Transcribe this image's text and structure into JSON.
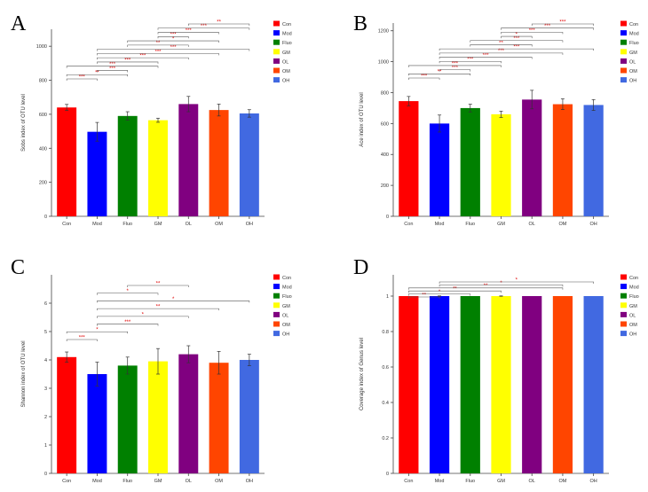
{
  "figure": {
    "colors": [
      "#ff0000",
      "#0000ff",
      "#008000",
      "#ffff00",
      "#800080",
      "#ff4500",
      "#4169e1"
    ],
    "legend_entries": [
      "Con",
      "Mod",
      "Fluo",
      "GM",
      "OL",
      "OM",
      "OH"
    ]
  },
  "chart_data": [
    {
      "panel": "A",
      "type": "bar",
      "title": "",
      "xlabel": "",
      "ylabel": "Sobs index of OTU level",
      "categories": [
        "Con",
        "Mod",
        "Fluo",
        "GM",
        "OL",
        "OM",
        "OH"
      ],
      "values": [
        640,
        497,
        590,
        565,
        660,
        625,
        605
      ],
      "errors": [
        18,
        55,
        25,
        12,
        45,
        35,
        22
      ],
      "ylim": [
        0,
        1100
      ],
      "yticks": [
        0,
        200,
        400,
        600,
        800,
        1000
      ],
      "legend_position": "top-right",
      "comparisons": [
        {
          "a": 0,
          "b": 1,
          "label": "***"
        },
        {
          "a": 0,
          "b": 2,
          "label": "**"
        },
        {
          "a": 1,
          "b": 2,
          "label": "***"
        },
        {
          "a": 0,
          "b": 3,
          "label": "***"
        },
        {
          "a": 1,
          "b": 3,
          "label": "***"
        },
        {
          "a": 1,
          "b": 4,
          "label": "***"
        },
        {
          "a": 1,
          "b": 5,
          "label": "***"
        },
        {
          "a": 1,
          "b": 6,
          "label": "***"
        },
        {
          "a": 2,
          "b": 4,
          "label": "**"
        },
        {
          "a": 2,
          "b": 5,
          "label": "*"
        },
        {
          "a": 3,
          "b": 4,
          "label": "***"
        },
        {
          "a": 3,
          "b": 5,
          "label": "***"
        },
        {
          "a": 3,
          "b": 6,
          "label": "***"
        },
        {
          "a": 4,
          "b": 6,
          "label": "**"
        }
      ]
    },
    {
      "panel": "B",
      "type": "bar",
      "title": "",
      "xlabel": "",
      "ylabel": "Ace index of OTU level",
      "categories": [
        "Con",
        "Mod",
        "Fluo",
        "GM",
        "OL",
        "OM",
        "OH"
      ],
      "values": [
        745,
        600,
        700,
        660,
        755,
        725,
        720
      ],
      "errors": [
        30,
        55,
        25,
        20,
        60,
        35,
        35
      ],
      "ylim": [
        0,
        1250
      ],
      "yticks": [
        0,
        200,
        400,
        600,
        800,
        1000,
        1200
      ],
      "legend_position": "top-right",
      "comparisons": [
        {
          "a": 0,
          "b": 1,
          "label": "***"
        },
        {
          "a": 0,
          "b": 2,
          "label": "**"
        },
        {
          "a": 1,
          "b": 2,
          "label": "***"
        },
        {
          "a": 0,
          "b": 3,
          "label": "***"
        },
        {
          "a": 1,
          "b": 3,
          "label": "***"
        },
        {
          "a": 1,
          "b": 4,
          "label": "***"
        },
        {
          "a": 1,
          "b": 5,
          "label": "***"
        },
        {
          "a": 1,
          "b": 6,
          "label": "***"
        },
        {
          "a": 2,
          "b": 4,
          "label": "**"
        },
        {
          "a": 2,
          "b": 5,
          "label": "***"
        },
        {
          "a": 3,
          "b": 4,
          "label": "*"
        },
        {
          "a": 3,
          "b": 5,
          "label": "***"
        },
        {
          "a": 3,
          "b": 6,
          "label": "***"
        },
        {
          "a": 4,
          "b": 6,
          "label": "***"
        }
      ]
    },
    {
      "panel": "C",
      "type": "bar",
      "title": "",
      "xlabel": "",
      "ylabel": "Shannon index of OTU level",
      "categories": [
        "Con",
        "Mod",
        "Fluo",
        "GM",
        "OL",
        "OM",
        "OH"
      ],
      "values": [
        4.1,
        3.5,
        3.8,
        3.95,
        4.2,
        3.9,
        4.0
      ],
      "errors": [
        0.18,
        0.42,
        0.3,
        0.45,
        0.3,
        0.4,
        0.2
      ],
      "ylim": [
        0,
        7
      ],
      "yticks": [
        0,
        1,
        2,
        3,
        4,
        5,
        6
      ],
      "legend_position": "top-right",
      "comparisons": [
        {
          "a": 0,
          "b": 1,
          "label": "***"
        },
        {
          "a": 0,
          "b": 2,
          "label": "*"
        },
        {
          "a": 1,
          "b": 3,
          "label": "***"
        },
        {
          "a": 1,
          "b": 4,
          "label": "*"
        },
        {
          "a": 1,
          "b": 5,
          "label": "**"
        },
        {
          "a": 1,
          "b": 6,
          "label": "*"
        },
        {
          "a": 1,
          "b": 3,
          "label": "*"
        },
        {
          "a": 2,
          "b": 4,
          "label": "**"
        }
      ]
    },
    {
      "panel": "D",
      "type": "bar",
      "title": "",
      "xlabel": "",
      "ylabel": "Coverage index of Genus level",
      "categories": [
        "Con",
        "Mod",
        "Fluo",
        "GM",
        "OL",
        "OM",
        "OH"
      ],
      "values": [
        1,
        1,
        1,
        1,
        1,
        1,
        1
      ],
      "errors": [
        0,
        0.001,
        0,
        0.001,
        0,
        0,
        0
      ],
      "ylim": [
        0,
        1.12
      ],
      "yticks": [
        0,
        0.2,
        0.4,
        0.6,
        0.8,
        1
      ],
      "legend_position": "top-right",
      "comparisons": [
        {
          "a": 0,
          "b": 1,
          "label": "**"
        },
        {
          "a": 0,
          "b": 2,
          "label": "*"
        },
        {
          "a": 0,
          "b": 3,
          "label": "**"
        },
        {
          "a": 0,
          "b": 5,
          "label": "**"
        },
        {
          "a": 1,
          "b": 5,
          "label": "*"
        },
        {
          "a": 1,
          "b": 6,
          "label": "*"
        }
      ]
    }
  ]
}
